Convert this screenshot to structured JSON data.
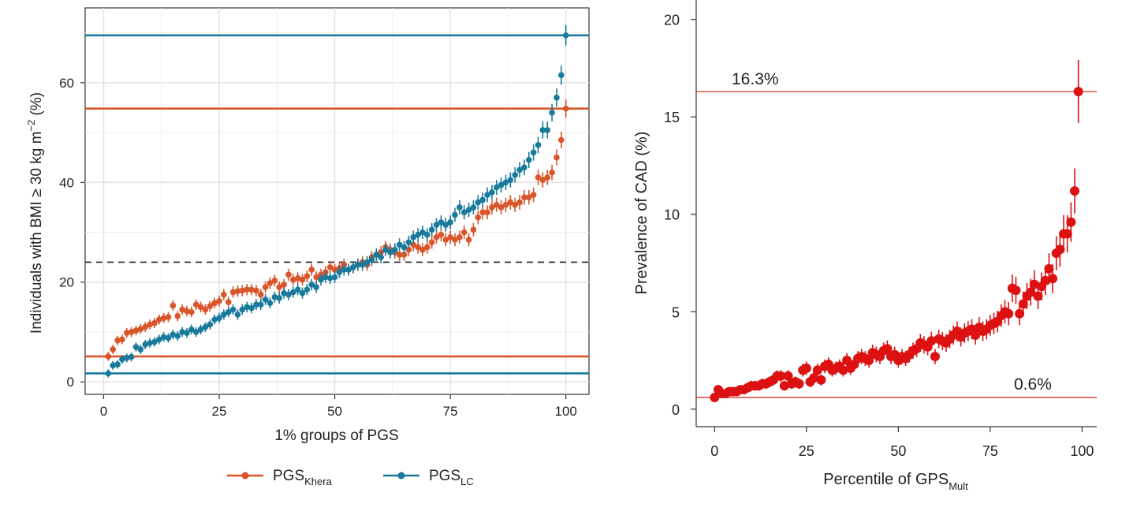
{
  "chart_data": [
    {
      "type": "scatter",
      "xlabel": "1% groups of PGS",
      "ylabel": "Individuals with BMI ≥ 30 kg m−2 (%)",
      "ylabel_parts": {
        "main": "Individuals with BMI ≥ 30 kg m",
        "sup": "−2",
        "tail": " (%)"
      },
      "xlim": [
        -4,
        105
      ],
      "ylim": [
        -2.5,
        75
      ],
      "x_ticks": [
        0,
        25,
        50,
        75,
        100
      ],
      "y_ticks": [
        0,
        20,
        40,
        60
      ],
      "x_tick_labels": [
        "0",
        "25",
        "50",
        "75",
        "100"
      ],
      "y_tick_labels": [
        "0",
        "20",
        "40",
        "60"
      ],
      "grid": true,
      "legend_position": "bottom",
      "reference_lines": [
        {
          "y": 69.5,
          "color": "#1a7a9c",
          "style": "solid"
        },
        {
          "y": 54.8,
          "color": "#d9552a",
          "style": "solid"
        },
        {
          "y": 5.1,
          "color": "#d9552a",
          "style": "solid"
        },
        {
          "y": 1.7,
          "color": "#1a7a9c",
          "style": "solid"
        },
        {
          "y": 24.0,
          "color": "#222222",
          "style": "dashed"
        }
      ],
      "series": [
        {
          "name": "PGSKhera",
          "legend_main": "PGS",
          "legend_sub": "Khera",
          "color": "#d9552a",
          "x": [
            1,
            2,
            3,
            4,
            5,
            6,
            7,
            8,
            9,
            10,
            11,
            12,
            13,
            14,
            15,
            16,
            17,
            18,
            19,
            20,
            21,
            22,
            23,
            24,
            25,
            26,
            27,
            28,
            29,
            30,
            31,
            32,
            33,
            34,
            35,
            36,
            37,
            38,
            39,
            40,
            41,
            42,
            43,
            44,
            45,
            46,
            47,
            48,
            49,
            50,
            51,
            52,
            53,
            54,
            55,
            56,
            57,
            58,
            59,
            60,
            61,
            62,
            63,
            64,
            65,
            66,
            67,
            68,
            69,
            70,
            71,
            72,
            73,
            74,
            75,
            76,
            77,
            78,
            79,
            80,
            81,
            82,
            83,
            84,
            85,
            86,
            87,
            88,
            89,
            90,
            91,
            92,
            93,
            94,
            95,
            96,
            97,
            98,
            99,
            100
          ],
          "y": [
            5.1,
            6.5,
            8.3,
            8.5,
            9.8,
            10.0,
            10.3,
            10.6,
            11.0,
            11.5,
            11.8,
            12.5,
            12.8,
            13.0,
            15.3,
            13.2,
            14.5,
            14.2,
            14.0,
            15.5,
            15.0,
            14.5,
            15.2,
            15.8,
            16.2,
            17.5,
            16.0,
            18.0,
            18.2,
            18.3,
            18.5,
            18.5,
            18.3,
            17.5,
            19.0,
            19.8,
            20.3,
            19.0,
            19.5,
            21.5,
            20.5,
            20.8,
            20.5,
            21.2,
            22.5,
            21.0,
            21.5,
            22.0,
            23.0,
            22.5,
            22.8,
            23.5,
            22.5,
            23.0,
            23.5,
            24.0,
            23.5,
            25.0,
            25.5,
            26.0,
            27.0,
            26.5,
            26.0,
            25.5,
            25.5,
            26.5,
            27.5,
            27.0,
            26.5,
            27.0,
            28.0,
            29.0,
            29.5,
            28.5,
            29.0,
            28.5,
            29.0,
            30.0,
            28.5,
            30.5,
            33.0,
            34.0,
            34.0,
            35.0,
            35.5,
            35.0,
            35.5,
            36.0,
            35.5,
            36.0,
            37.0,
            37.0,
            37.5,
            41.0,
            40.5,
            41.0,
            42.0,
            45.0,
            48.5,
            54.8
          ]
        },
        {
          "name": "PGSLC",
          "legend_main": "PGS",
          "legend_sub": "LC",
          "color": "#1a7a9c",
          "x": [
            1,
            2,
            3,
            4,
            5,
            6,
            7,
            8,
            9,
            10,
            11,
            12,
            13,
            14,
            15,
            16,
            17,
            18,
            19,
            20,
            21,
            22,
            23,
            24,
            25,
            26,
            27,
            28,
            29,
            30,
            31,
            32,
            33,
            34,
            35,
            36,
            37,
            38,
            39,
            40,
            41,
            42,
            43,
            44,
            45,
            46,
            47,
            48,
            49,
            50,
            51,
            52,
            53,
            54,
            55,
            56,
            57,
            58,
            59,
            60,
            61,
            62,
            63,
            64,
            65,
            66,
            67,
            68,
            69,
            70,
            71,
            72,
            73,
            74,
            75,
            76,
            77,
            78,
            79,
            80,
            81,
            82,
            83,
            84,
            85,
            86,
            87,
            88,
            89,
            90,
            91,
            92,
            93,
            94,
            95,
            96,
            97,
            98,
            99,
            100
          ],
          "y": [
            1.7,
            3.3,
            3.5,
            4.5,
            4.8,
            5.0,
            7.0,
            6.5,
            7.5,
            7.8,
            8.0,
            8.5,
            9.0,
            8.8,
            9.5,
            9.2,
            10.0,
            9.8,
            10.5,
            10.0,
            10.5,
            11.0,
            11.5,
            12.5,
            12.8,
            13.5,
            14.0,
            14.5,
            13.5,
            14.5,
            15.0,
            14.8,
            15.5,
            15.5,
            16.5,
            15.8,
            17.0,
            16.8,
            17.8,
            17.5,
            18.0,
            18.5,
            17.8,
            18.5,
            19.5,
            19.0,
            20.5,
            21.0,
            20.8,
            21.0,
            22.0,
            22.5,
            22.5,
            23.0,
            23.5,
            23.5,
            24.0,
            24.5,
            25.5,
            25.0,
            26.5,
            26.0,
            26.5,
            27.5,
            27.0,
            28.0,
            29.0,
            29.5,
            30.0,
            29.5,
            30.5,
            31.5,
            32.0,
            31.5,
            32.0,
            33.5,
            35.0,
            34.0,
            34.5,
            35.0,
            36.0,
            36.5,
            37.5,
            38.0,
            39.0,
            39.5,
            40.0,
            40.5,
            41.5,
            42.5,
            43.0,
            44.5,
            46.0,
            47.5,
            50.5,
            50.5,
            54.0,
            57.0,
            61.5,
            69.5
          ]
        }
      ]
    },
    {
      "type": "scatter",
      "xlabel": "Percentile of GPSMult",
      "xlabel_parts": {
        "main": "Percentile of GPS",
        "sub": "Mult"
      },
      "ylabel": "Prevalence of CAD (%)",
      "xlim": [
        -5,
        104
      ],
      "ylim": [
        -0.9,
        21
      ],
      "x_ticks": [
        0,
        25,
        50,
        75,
        100
      ],
      "y_ticks": [
        0,
        5,
        10,
        15,
        20
      ],
      "x_tick_labels": [
        "0",
        "25",
        "50",
        "75",
        "100"
      ],
      "y_tick_labels": [
        "0",
        "5",
        "10",
        "15",
        "20"
      ],
      "grid": false,
      "reference_lines": [
        {
          "y": 16.3,
          "color": "#d9302a",
          "label": "16.3%"
        },
        {
          "y": 0.6,
          "color": "#d9302a",
          "label": "0.6%"
        }
      ],
      "series": [
        {
          "color": "#dd1111",
          "x": [
            0,
            1,
            2,
            3,
            4,
            5,
            6,
            7,
            8,
            9,
            10,
            11,
            12,
            13,
            14,
            15,
            16,
            17,
            18,
            19,
            20,
            21,
            22,
            23,
            24,
            25,
            26,
            27,
            28,
            29,
            30,
            31,
            32,
            33,
            34,
            35,
            36,
            37,
            38,
            39,
            40,
            41,
            42,
            43,
            44,
            45,
            46,
            47,
            48,
            49,
            50,
            51,
            52,
            53,
            54,
            55,
            56,
            57,
            58,
            59,
            60,
            61,
            62,
            63,
            64,
            65,
            66,
            67,
            68,
            69,
            70,
            71,
            72,
            73,
            74,
            75,
            76,
            77,
            78,
            79,
            80,
            81,
            82,
            83,
            84,
            85,
            86,
            87,
            88,
            89,
            90,
            91,
            92,
            93,
            94,
            95,
            96,
            97,
            98,
            99
          ],
          "y": [
            0.6,
            1.0,
            0.8,
            0.8,
            0.9,
            0.9,
            0.9,
            1.0,
            1.0,
            1.1,
            1.2,
            1.2,
            1.2,
            1.3,
            1.3,
            1.4,
            1.5,
            1.7,
            1.7,
            1.2,
            1.7,
            1.3,
            1.4,
            1.3,
            2.0,
            2.1,
            1.4,
            1.6,
            2.0,
            1.5,
            2.2,
            2.3,
            2.0,
            2.1,
            2.2,
            2.0,
            2.5,
            2.1,
            2.3,
            2.6,
            2.7,
            2.6,
            2.5,
            2.9,
            2.8,
            2.7,
            3.0,
            3.1,
            2.7,
            2.8,
            2.5,
            2.7,
            2.6,
            2.8,
            3.0,
            3.1,
            3.4,
            3.3,
            3.2,
            3.5,
            2.7,
            3.6,
            3.5,
            3.4,
            3.6,
            3.8,
            4.0,
            3.7,
            3.9,
            4.0,
            4.1,
            3.8,
            4.2,
            4.0,
            4.1,
            4.3,
            4.4,
            4.5,
            4.8,
            5.0,
            4.9,
            6.2,
            6.1,
            4.9,
            5.4,
            5.8,
            6.0,
            6.4,
            5.8,
            6.3,
            6.6,
            7.2,
            6.7,
            8.0,
            8.2,
            9.0,
            9.0,
            9.6,
            11.2,
            16.3
          ]
        }
      ]
    }
  ]
}
